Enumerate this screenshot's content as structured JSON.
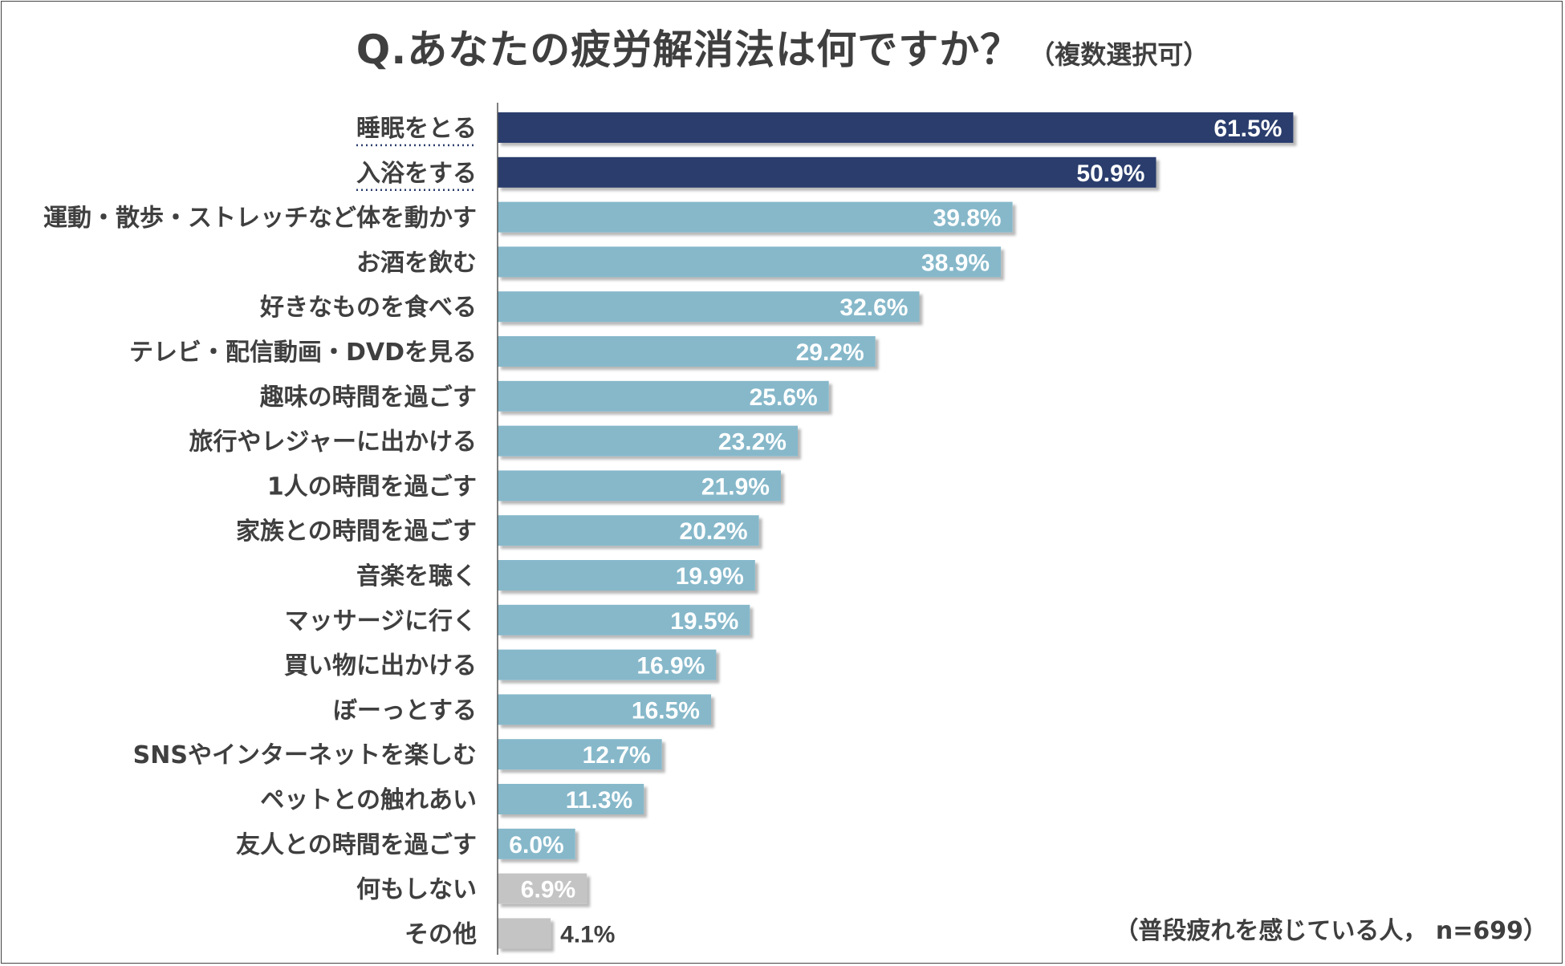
{
  "header": {
    "title": "Q.あなたの疲労解消法は何ですか？",
    "subtitle": "（複数選択可）"
  },
  "footnote": "（普段疲れを感じている人， n=699）",
  "colors": {
    "highlight": "#2b3d6d",
    "normal": "#86b8ca",
    "other": "#c4c4c4",
    "axis": "#555555",
    "text": "#3f3f3f"
  },
  "chart_data": {
    "type": "bar",
    "orientation": "horizontal",
    "title": "Q.あなたの疲労解消法は何ですか？（複数選択可）",
    "unit": "%",
    "categories": [
      "睡眠をとる",
      "入浴をする",
      "運動・散歩・ストレッチなど体を動かす",
      "お酒を飲む",
      "好きなものを食べる",
      "テレビ・配信動画・DVDを見る",
      "趣味の時間を過ごす",
      "旅行やレジャーに出かける",
      "1人の時間を過ごす",
      "家族との時間を過ごす",
      "音楽を聴く",
      "マッサージに行く",
      "買い物に出かける",
      "ぼーっとする",
      "SNSやインターネットを楽しむ",
      "ペットとの触れあい",
      "友人との時間を過ごす",
      "何もしない",
      "その他"
    ],
    "values": [
      61.5,
      50.9,
      39.8,
      38.9,
      32.6,
      29.2,
      25.6,
      23.2,
      21.9,
      20.2,
      19.9,
      19.5,
      16.9,
      16.5,
      12.7,
      11.3,
      6.0,
      6.9,
      4.1
    ],
    "labels": [
      "61.5%",
      "50.9%",
      "39.8%",
      "38.9%",
      "32.6%",
      "29.2%",
      "25.6%",
      "23.2%",
      "21.9%",
      "20.2%",
      "19.9%",
      "19.5%",
      "16.9%",
      "16.5%",
      "12.7%",
      "11.3%",
      "6.0%",
      "6.9%",
      "4.1%"
    ],
    "groups": [
      "highlight",
      "highlight",
      "normal",
      "normal",
      "normal",
      "normal",
      "normal",
      "normal",
      "normal",
      "normal",
      "normal",
      "normal",
      "normal",
      "normal",
      "normal",
      "normal",
      "normal",
      "other",
      "other"
    ],
    "underlined_categories": [
      "睡眠をとる",
      "入浴をする"
    ],
    "xlim": [
      0,
      65
    ],
    "note": "（普段疲れを感じている人， n=699）"
  }
}
